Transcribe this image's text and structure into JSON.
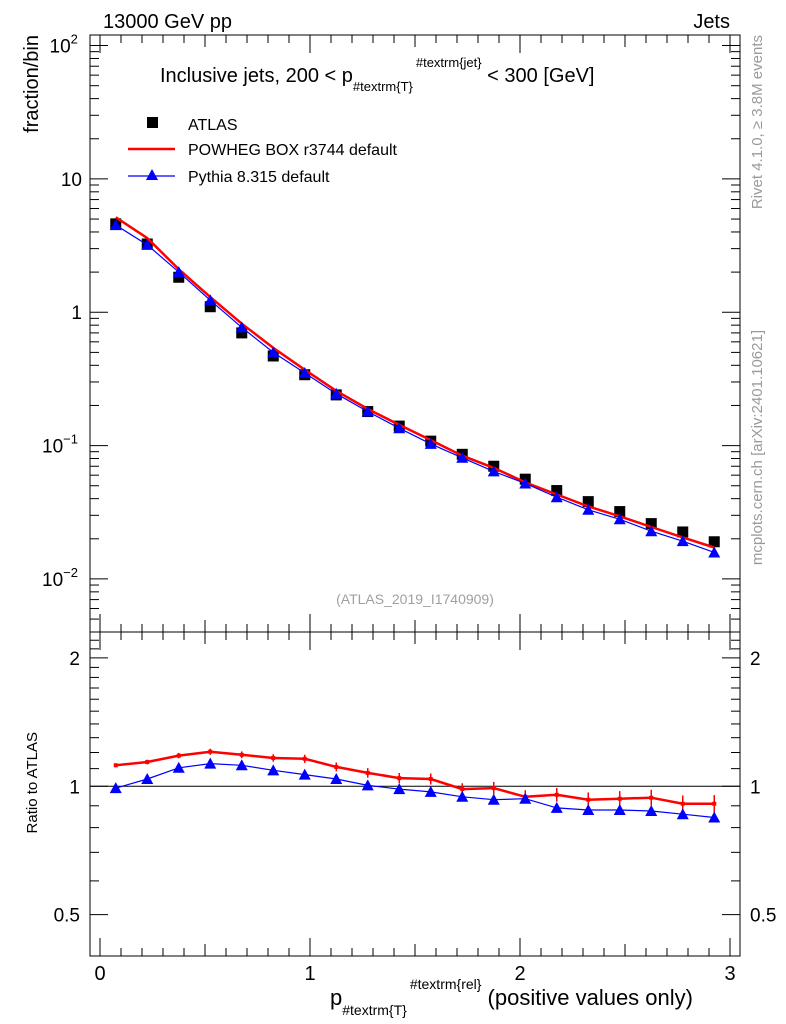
{
  "header": {
    "left": "13000 GeV pp",
    "right": "Jets"
  },
  "side_labels": {
    "top": "Rivet 4.1.0, ≥ 3.8M events",
    "bottom": "mcplots.cern.ch [arXiv:2401.10621]"
  },
  "chart_data": {
    "type": "line",
    "title": "Inclusive jets, 200 < p",
    "title_sub": "#textrm{T}",
    "title_sup": "#textrm{jet}",
    "title_tail": " < 300 [GeV]",
    "analysis_id": "(ATLAS_2019_I1740909)",
    "ylabel": "fraction/bin",
    "ratio_ylabel": "Ratio to ATLAS",
    "xlabel_main": "p",
    "xlabel_sub": "#textrm{T}",
    "xlabel_sup": "#textrm{rel}",
    "xlabel_tail": " (positive values only)",
    "xlim": [
      0,
      3
    ],
    "ylim": [
      0.004,
      120
    ],
    "ratio_ylim": [
      0.4,
      2.3
    ],
    "x_ticks": [
      "0",
      "1",
      "2",
      "3"
    ],
    "y_ticks": [
      {
        "base": "10",
        "exp": "−2",
        "value": 0.01
      },
      {
        "base": "10",
        "exp": "−1",
        "value": 0.1
      },
      {
        "base": "1",
        "exp": "",
        "value": 1
      },
      {
        "base": "10",
        "exp": "",
        "value": 10
      },
      {
        "base": "10",
        "exp": "2",
        "value": 100
      }
    ],
    "ratio_ticks": [
      "0.5",
      "1",
      "2"
    ],
    "x": [
      0.075,
      0.225,
      0.375,
      0.525,
      0.675,
      0.825,
      0.975,
      1.125,
      1.275,
      1.425,
      1.575,
      1.725,
      1.875,
      2.025,
      2.175,
      2.325,
      2.475,
      2.625,
      2.775,
      2.925
    ],
    "legend": [
      "ATLAS",
      "POWHEG BOX r3744 default",
      "Pythia 8.315 default"
    ],
    "series": [
      {
        "name": "ATLAS",
        "style": "markers",
        "color": "#000000",
        "values": [
          4.6,
          3.25,
          1.83,
          1.1,
          0.7,
          0.47,
          0.34,
          0.24,
          0.18,
          0.14,
          0.108,
          0.086,
          0.07,
          0.056,
          0.046,
          0.038,
          0.032,
          0.026,
          0.0225,
          0.019
        ]
      },
      {
        "name": "POWHEG BOX r3744 default",
        "style": "line",
        "color": "#ff0000",
        "values": [
          5.15,
          3.6,
          2.1,
          1.3,
          0.82,
          0.54,
          0.37,
          0.257,
          0.188,
          0.143,
          0.11,
          0.084,
          0.068,
          0.053,
          0.043,
          0.035,
          0.0295,
          0.0245,
          0.0205,
          0.0172
        ]
      },
      {
        "name": "Pythia 8.315 default",
        "style": "line+triangles",
        "color": "#0000ff",
        "values": [
          4.5,
          3.2,
          2.0,
          1.23,
          0.77,
          0.5,
          0.35,
          0.245,
          0.18,
          0.135,
          0.103,
          0.081,
          0.064,
          0.052,
          0.041,
          0.033,
          0.028,
          0.0228,
          0.0192,
          0.0158
        ]
      }
    ],
    "ratio_series": [
      {
        "name": "POWHEG BOX r3744 default",
        "color": "#ff0000",
        "values": [
          1.12,
          1.14,
          1.18,
          1.205,
          1.185,
          1.165,
          1.16,
          1.11,
          1.075,
          1.045,
          1.04,
          0.985,
          0.99,
          0.945,
          0.955,
          0.93,
          0.935,
          0.94,
          0.91,
          0.91
        ]
      },
      {
        "name": "Pythia 8.315 default",
        "color": "#0000ff",
        "values": [
          0.99,
          1.04,
          1.105,
          1.13,
          1.12,
          1.09,
          1.065,
          1.04,
          1.005,
          0.985,
          0.97,
          0.945,
          0.93,
          0.935,
          0.89,
          0.88,
          0.88,
          0.875,
          0.86,
          0.845
        ]
      }
    ]
  }
}
